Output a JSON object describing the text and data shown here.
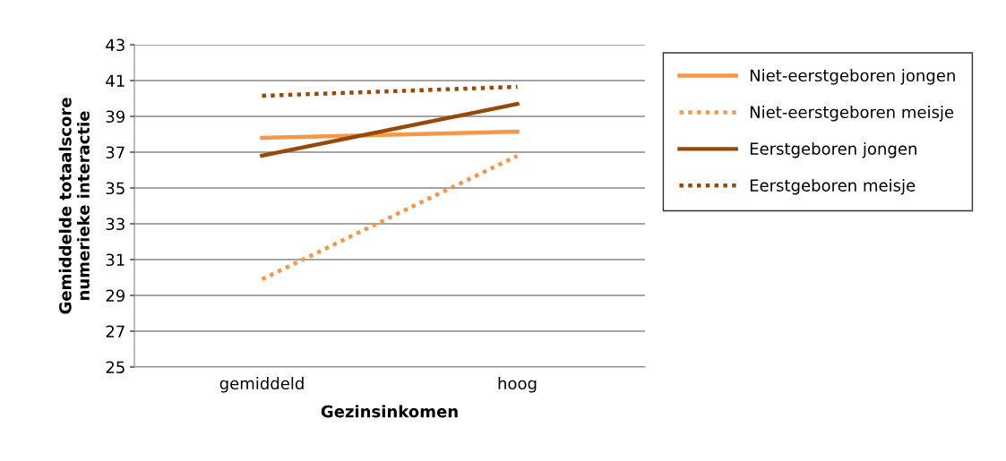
{
  "chart_data": {
    "type": "line",
    "xlabel": "Gezinsinkomen",
    "ylabel": "Gemiddelde totaalscore\nnumerieke interactie",
    "categories": [
      "gemiddeld",
      "hoog"
    ],
    "series": [
      {
        "name": "Niet-eerstgeboren jongen",
        "color": "#f79646",
        "line_style": "solid",
        "values": [
          37.8,
          38.15
        ]
      },
      {
        "name": "Niet-eerstgeboren meisje",
        "color": "#f79646",
        "line_style": "dotted",
        "values": [
          29.9,
          36.8
        ]
      },
      {
        "name": "Eerstgeboren jongen",
        "color": "#984807",
        "line_style": "solid",
        "values": [
          36.8,
          39.7
        ]
      },
      {
        "name": "Eerstgeboren meisje",
        "color": "#984807",
        "line_style": "dotted",
        "values": [
          40.15,
          40.65
        ]
      }
    ],
    "ylim": [
      25,
      43
    ],
    "yticks": [
      25,
      27,
      29,
      31,
      33,
      35,
      37,
      39,
      41,
      43
    ],
    "grid": "y",
    "legend": "right",
    "marker": "none"
  }
}
